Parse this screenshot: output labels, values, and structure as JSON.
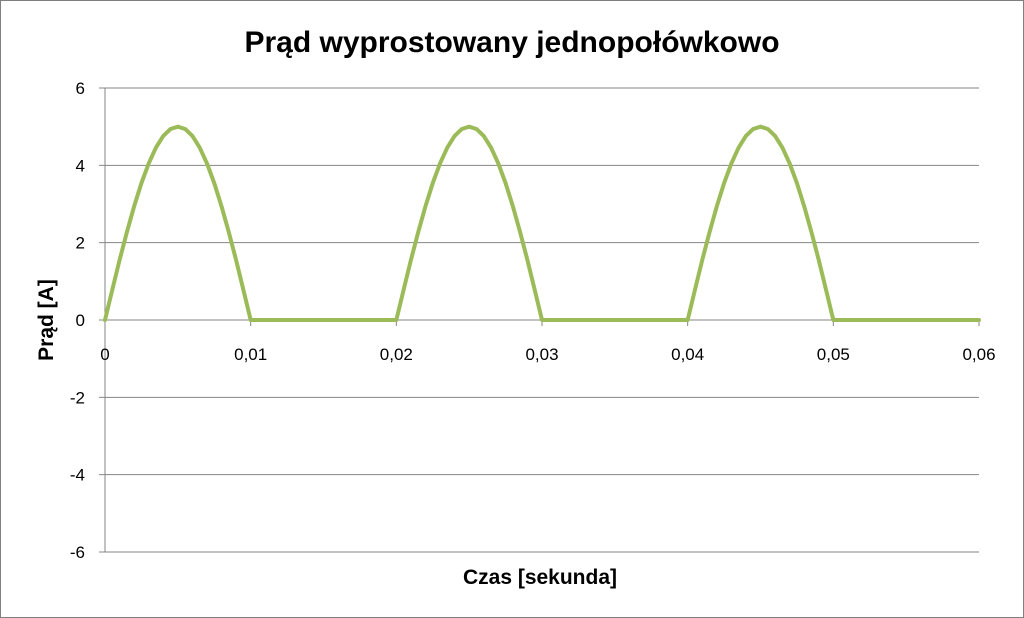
{
  "chart_data": {
    "type": "line",
    "title": "Prąd wyprostowany jednopołówkowo",
    "xlabel": "Czas [sekunda]",
    "ylabel": "Prąd  [A]",
    "xlim": [
      0,
      0.06
    ],
    "ylim": [
      -6,
      6
    ],
    "x_ticks": [
      0,
      0.01,
      0.02,
      0.03,
      0.04,
      0.05,
      0.06
    ],
    "x_tick_labels": [
      "0",
      "0,01",
      "0,02",
      "0,03",
      "0,04",
      "0,05",
      "0,06"
    ],
    "y_ticks": [
      -6,
      -4,
      -2,
      0,
      2,
      4,
      6
    ],
    "y_tick_labels": [
      "-6",
      "-4",
      "-2",
      "0",
      "2",
      "4",
      "6"
    ],
    "grid": "horizontal",
    "legend": "none",
    "series": [
      {
        "color": "#9bbb59",
        "x": [
          0,
          0.0005,
          0.001,
          0.0015,
          0.002,
          0.0025,
          0.003,
          0.0035,
          0.004,
          0.0045,
          0.005,
          0.0055,
          0.006,
          0.0065,
          0.007,
          0.0075,
          0.008,
          0.0085,
          0.009,
          0.0095,
          0.01,
          0.011,
          0.012,
          0.013,
          0.014,
          0.015,
          0.016,
          0.017,
          0.018,
          0.019,
          0.02,
          0.0205,
          0.021,
          0.0215,
          0.022,
          0.0225,
          0.023,
          0.0235,
          0.024,
          0.0245,
          0.025,
          0.0255,
          0.026,
          0.0265,
          0.027,
          0.0275,
          0.028,
          0.0285,
          0.029,
          0.0295,
          0.03,
          0.031,
          0.032,
          0.033,
          0.034,
          0.035,
          0.036,
          0.037,
          0.038,
          0.039,
          0.04,
          0.0405,
          0.041,
          0.0415,
          0.042,
          0.0425,
          0.043,
          0.0435,
          0.044,
          0.0445,
          0.045,
          0.0455,
          0.046,
          0.0465,
          0.047,
          0.0475,
          0.048,
          0.0485,
          0.049,
          0.0495,
          0.05,
          0.051,
          0.052,
          0.053,
          0.054,
          0.055,
          0.056,
          0.057,
          0.058,
          0.059,
          0.06
        ],
        "y": [
          0,
          0.78,
          1.55,
          2.27,
          2.94,
          3.54,
          4.05,
          4.46,
          4.76,
          4.94,
          5,
          4.94,
          4.76,
          4.46,
          4.05,
          3.54,
          2.94,
          2.27,
          1.55,
          0.78,
          0,
          0,
          0,
          0,
          0,
          0,
          0,
          0,
          0,
          0,
          0,
          0.78,
          1.55,
          2.27,
          2.94,
          3.54,
          4.05,
          4.46,
          4.76,
          4.94,
          5,
          4.94,
          4.76,
          4.46,
          4.05,
          3.54,
          2.94,
          2.27,
          1.55,
          0.78,
          0,
          0,
          0,
          0,
          0,
          0,
          0,
          0,
          0,
          0,
          0,
          0.78,
          1.55,
          2.27,
          2.94,
          3.54,
          4.05,
          4.46,
          4.76,
          4.94,
          5,
          4.94,
          4.76,
          4.46,
          4.05,
          3.54,
          2.94,
          2.27,
          1.55,
          0.78,
          0,
          0,
          0,
          0,
          0,
          0,
          0,
          0,
          0,
          0,
          0
        ]
      }
    ]
  }
}
